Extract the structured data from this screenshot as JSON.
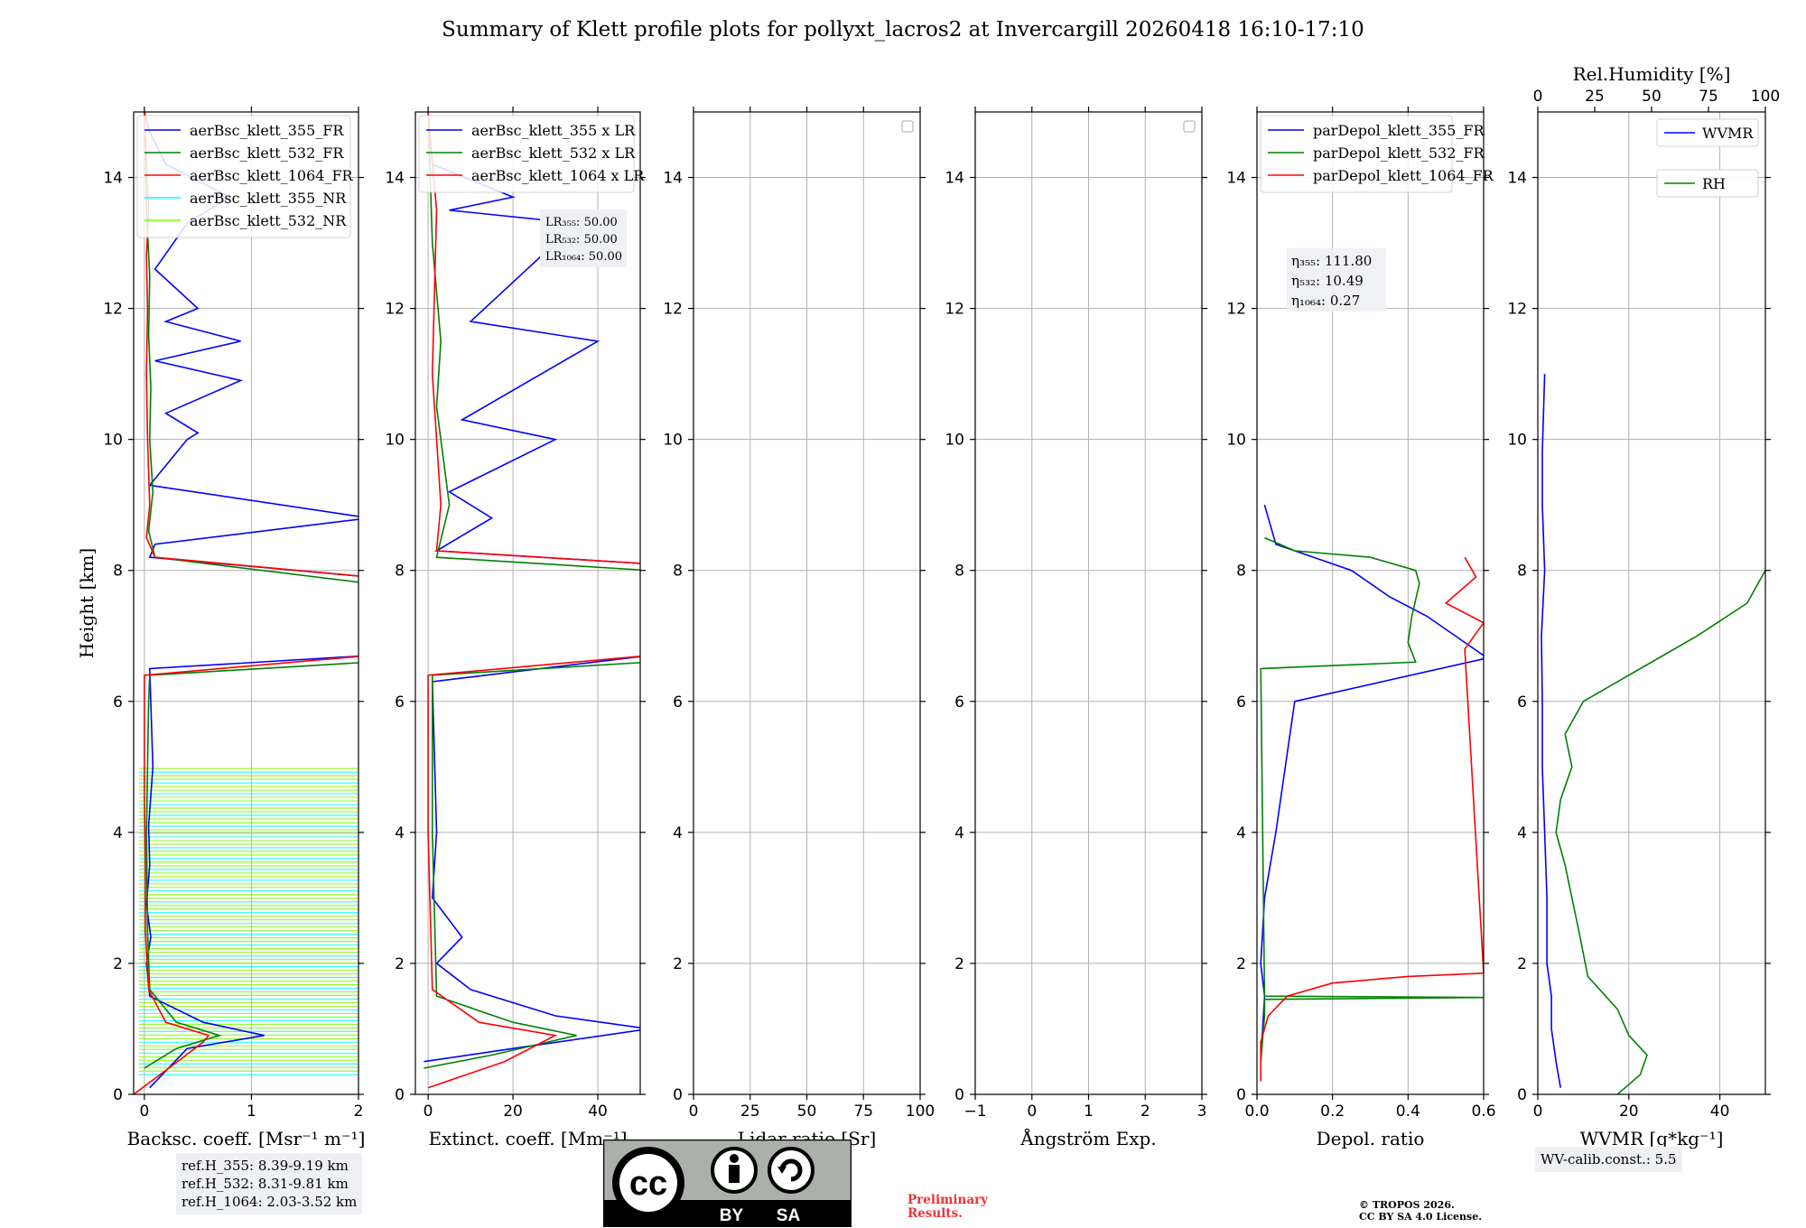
{
  "title": "Summary of Klett profile plots for pollyxt_lacros2 at Invercargill 20260418 16:10-17:10",
  "colors": {
    "c355": "#0000ff",
    "c532": "#008000",
    "c1064": "#ff0000",
    "cNR355": "#00ffff",
    "cNR532": "#7cfc00",
    "grid": "#b0b0b0"
  },
  "chart_data": [
    {
      "type": "line",
      "id": "backscatter",
      "xlabel": "Backsc. coeff. [Msr⁻¹ m⁻¹]",
      "ylabel": "Height [km]",
      "xlim": [
        -0.1,
        2
      ],
      "ylim": [
        0,
        15
      ],
      "xticks": [
        0,
        1,
        2
      ],
      "xtick_labels": [
        "0",
        "1",
        "2"
      ],
      "yticks": [
        0,
        2,
        4,
        6,
        8,
        10,
        12,
        14
      ],
      "ytick_labels": [
        "0",
        "2",
        "4",
        "6",
        "8",
        "10",
        "12",
        "14"
      ],
      "legend": [
        "aerBsc_klett_355_FR",
        "aerBsc_klett_532_FR",
        "aerBsc_klett_1064_FR",
        "aerBsc_klett_355_NR",
        "aerBsc_klett_532_NR"
      ],
      "series": [
        {
          "name": "aerBsc_klett_355_FR",
          "color": "c355",
          "x": [
            0.05,
            0.4,
            1.12,
            0.55,
            0.05,
            0.02,
            0.06,
            0.02,
            0.05,
            0.04,
            0.08,
            0.05,
            2.1,
            2.1,
            0.05,
            0.1,
            2.1,
            0.05,
            0.4,
            0.5,
            0.2,
            0.9,
            0.1,
            0.9,
            0.2,
            0.5,
            0.1,
            0.4,
            0.8,
            0.2,
            0.05,
            0.0
          ],
          "y": [
            0.1,
            0.7,
            0.9,
            1.1,
            1.5,
            2.0,
            2.4,
            2.9,
            3.5,
            4.1,
            5.0,
            6.5,
            6.7,
            7.9,
            8.2,
            8.4,
            8.8,
            9.3,
            10.0,
            10.1,
            10.4,
            10.9,
            11.2,
            11.5,
            11.8,
            12.0,
            12.6,
            13.3,
            13.7,
            14.2,
            14.7,
            15.0
          ]
        },
        {
          "name": "aerBsc_klett_532_FR",
          "color": "c532",
          "x": [
            0.0,
            0.1,
            0.3,
            0.7,
            0.3,
            0.05,
            0.03,
            0.02,
            0.03,
            0.04,
            0.05,
            2.1,
            2.1,
            0.1,
            0.04,
            0.08,
            0.05,
            0.06,
            0.04,
            0.05,
            0.02,
            0.0
          ],
          "y": [
            0.4,
            0.5,
            0.7,
            0.9,
            1.1,
            1.6,
            2.5,
            4.0,
            5.0,
            6.0,
            6.4,
            6.6,
            7.8,
            8.2,
            8.6,
            9.2,
            10.0,
            10.8,
            11.6,
            12.5,
            13.5,
            15.0
          ]
        },
        {
          "name": "aerBsc_klett_1064_FR",
          "color": "c1064",
          "x": [
            -0.1,
            0.35,
            0.55,
            0.6,
            0.2,
            0.04,
            0.01,
            0.01,
            0.0,
            0.0,
            0.0,
            2.1,
            2.1,
            0.1,
            0.02,
            0.05,
            0.03,
            0.02,
            0.03,
            0.02,
            0.04,
            0.02,
            0.0
          ],
          "y": [
            0.0,
            0.55,
            0.8,
            0.9,
            1.1,
            1.6,
            2.5,
            3.5,
            4.5,
            5.5,
            6.4,
            6.7,
            7.9,
            8.2,
            8.5,
            9.0,
            10.0,
            11.0,
            12.0,
            12.8,
            13.5,
            14.2,
            15.0
          ]
        }
      ],
      "nr_hatch_range_km": [
        0.3,
        5.0
      ],
      "annotation": [
        "ref.H_355: 8.39-9.19 km",
        "ref.H_532: 8.31-9.81 km",
        "ref.H_1064: 2.03-3.52 km"
      ]
    },
    {
      "type": "line",
      "id": "extinction",
      "xlabel": "Extinct. coeff. [Mm⁻¹]",
      "xlim": [
        -3,
        50
      ],
      "ylim": [
        0,
        15
      ],
      "xticks": [
        0,
        20,
        40
      ],
      "xtick_labels": [
        "0",
        "20",
        "40"
      ],
      "yticks": [
        0,
        2,
        4,
        6,
        8,
        10,
        12,
        14
      ],
      "ytick_labels": [
        "0",
        "2",
        "4",
        "6",
        "8",
        "10",
        "12",
        "14"
      ],
      "legend": [
        "aerBsc_klett_355 x LR",
        "aerBsc_klett_532 x LR",
        "aerBsc_klett_1064 x LR"
      ],
      "series": [
        {
          "name": "aerBsc_klett_355 x LR",
          "color": "c355",
          "x": [
            -1,
            20,
            52,
            30,
            10,
            2,
            8,
            1,
            2,
            1,
            52,
            52,
            2,
            15,
            5,
            30,
            8,
            40,
            10,
            35,
            5,
            20,
            1,
            0
          ],
          "y": [
            0.5,
            0.7,
            1.0,
            1.2,
            1.6,
            2.0,
            2.4,
            3.0,
            4.0,
            6.3,
            6.7,
            8.1,
            8.3,
            8.8,
            9.2,
            10.0,
            10.3,
            11.5,
            11.8,
            13.3,
            13.5,
            13.7,
            14.2,
            15.0
          ]
        },
        {
          "name": "aerBsc_klett_532 x LR",
          "color": "c532",
          "x": [
            -1,
            15,
            35,
            20,
            2,
            1,
            1,
            52,
            52,
            2,
            5,
            2,
            3,
            1,
            0
          ],
          "y": [
            0.4,
            0.6,
            0.9,
            1.1,
            1.5,
            4.0,
            6.4,
            6.6,
            8.0,
            8.2,
            9.0,
            10.5,
            11.5,
            13.0,
            15.0
          ]
        },
        {
          "name": "aerBsc_klett_1064 x LR",
          "color": "c1064",
          "x": [
            0,
            18,
            30,
            12,
            1,
            0,
            0,
            52,
            52,
            2,
            3,
            1,
            2,
            0
          ],
          "y": [
            0.1,
            0.5,
            0.9,
            1.1,
            1.6,
            4.0,
            6.4,
            6.7,
            8.1,
            8.3,
            9.0,
            11.0,
            13.5,
            15.0
          ]
        }
      ],
      "annotation": [
        "LR₃₅₅: 50.00",
        "LR₅₃₂: 50.00",
        "LR₁₀₆₄: 50.00"
      ]
    },
    {
      "type": "line",
      "id": "lidar-ratio",
      "xlabel": "Lidar ratio [Sr]",
      "xlim": [
        0,
        100
      ],
      "ylim": [
        0,
        15
      ],
      "xticks": [
        0,
        25,
        50,
        75,
        100
      ],
      "xtick_labels": [
        "0",
        "25",
        "50",
        "75",
        "100"
      ],
      "yticks": [
        0,
        2,
        4,
        6,
        8,
        10,
        12,
        14
      ],
      "ytick_labels": [
        "0",
        "2",
        "4",
        "6",
        "8",
        "10",
        "12",
        "14"
      ],
      "series": [],
      "empty_legend": true
    },
    {
      "type": "line",
      "id": "angstrom",
      "xlabel": "Ångström Exp.",
      "xlim": [
        -1,
        3
      ],
      "ylim": [
        0,
        15
      ],
      "xticks": [
        -1,
        0,
        1,
        2,
        3
      ],
      "xtick_labels": [
        "−1",
        "0",
        "1",
        "2",
        "3"
      ],
      "yticks": [
        0,
        2,
        4,
        6,
        8,
        10,
        12,
        14
      ],
      "ytick_labels": [
        "0",
        "2",
        "4",
        "6",
        "8",
        "10",
        "12",
        "14"
      ],
      "series": [],
      "empty_legend": true
    },
    {
      "type": "line",
      "id": "depol",
      "xlabel": "Depol. ratio",
      "xlim": [
        0,
        0.6
      ],
      "ylim": [
        0,
        15
      ],
      "xticks": [
        0,
        0.2,
        0.4,
        0.6
      ],
      "xtick_labels": [
        "0.0",
        "0.2",
        "0.4",
        "0.6"
      ],
      "yticks": [
        0,
        2,
        4,
        6,
        8,
        10,
        12,
        14
      ],
      "ytick_labels": [
        "0",
        "2",
        "4",
        "6",
        "8",
        "10",
        "12",
        "14"
      ],
      "legend": [
        "parDepol_klett_355_FR",
        "parDepol_klett_532_FR",
        "parDepol_klett_1064_FR"
      ],
      "series": [
        {
          "name": "parDepol_klett_355_FR",
          "color": "c355",
          "x": [
            0.01,
            0.02,
            0.01,
            0.02,
            0.05,
            0.1,
            0.6,
            0.6,
            0.55,
            0.45,
            0.35,
            0.3,
            0.25,
            0.15,
            0.05,
            0.02
          ],
          "y": [
            0.5,
            1.5,
            2.0,
            3.0,
            4.0,
            6.0,
            6.65,
            6.7,
            6.9,
            7.3,
            7.6,
            7.8,
            8.0,
            8.2,
            8.4,
            9.0
          ]
        },
        {
          "name": "parDepol_klett_532_FR",
          "color": "c532",
          "x": [
            0.01,
            0.02,
            0.02,
            0.6,
            0.02,
            0.01,
            0.42,
            0.4,
            0.41,
            0.43,
            0.42,
            0.3,
            0.1,
            0.02
          ],
          "y": [
            0.5,
            1.2,
            1.45,
            1.48,
            1.5,
            6.5,
            6.6,
            6.9,
            7.3,
            7.8,
            8.0,
            8.2,
            8.3,
            8.5
          ]
        },
        {
          "name": "parDepol_klett_1064_FR",
          "color": "c1064",
          "x": [
            0.01,
            0.01,
            0.03,
            0.08,
            0.2,
            0.4,
            0.6,
            0.55,
            0.6,
            0.5,
            0.58,
            0.55
          ],
          "y": [
            0.2,
            0.8,
            1.2,
            1.5,
            1.7,
            1.8,
            1.85,
            6.8,
            7.2,
            7.5,
            7.9,
            8.2
          ]
        }
      ],
      "annotation": [
        "η₃₅₅: 111.80",
        "η₅₃₂: 10.49",
        "η₁₀₆₄: 0.27"
      ]
    },
    {
      "type": "line",
      "id": "wvmr",
      "xlabel": "WVMR [g*kg⁻¹]",
      "x2label": "Rel.Humidity [%]",
      "xlim": [
        0,
        50
      ],
      "x2lim": [
        0,
        100
      ],
      "ylim": [
        0,
        15
      ],
      "xticks": [
        0,
        20,
        40
      ],
      "xtick_labels": [
        "0",
        "20",
        "40"
      ],
      "x2ticks": [
        0,
        25,
        50,
        75,
        100
      ],
      "x2tick_labels": [
        "0",
        "25",
        "50",
        "75",
        "100"
      ],
      "yticks": [
        0,
        2,
        4,
        6,
        8,
        10,
        12,
        14
      ],
      "ytick_labels": [
        "0",
        "2",
        "4",
        "6",
        "8",
        "10",
        "12",
        "14"
      ],
      "legend": [
        "WVMR",
        "RH"
      ],
      "series": [
        {
          "name": "WVMR",
          "color": "c355",
          "x": [
            5,
            4,
            3,
            3,
            2,
            2,
            1.5,
            1,
            1,
            0.8,
            1.5,
            1,
            1,
            1.5
          ],
          "y": [
            0.1,
            0.5,
            1.0,
            1.5,
            2.0,
            3.0,
            4.0,
            5.0,
            6.0,
            7.0,
            8.0,
            9.0,
            9.8,
            11.0
          ]
        },
        {
          "name": "RH",
          "color": "c532",
          "x": [
            35,
            45,
            48,
            40,
            35,
            22,
            18,
            15,
            12,
            8,
            10,
            15,
            12,
            20,
            45,
            70,
            92,
            100
          ],
          "y": [
            0.0,
            0.3,
            0.6,
            0.9,
            1.3,
            1.8,
            2.5,
            3.0,
            3.5,
            4.0,
            4.5,
            5.0,
            5.5,
            6.0,
            6.5,
            7.0,
            7.5,
            8.0
          ]
        }
      ],
      "annotation": [
        "WV-calib.const.: 5.5"
      ]
    }
  ],
  "license": {
    "cc": "cc",
    "by": "BY",
    "sa": "SA"
  },
  "footer": {
    "prelim1": "Preliminary",
    "prelim2": "Results.",
    "copyright1": "© TROPOS 2026.",
    "copyright2": "CC BY SA 4.0 License."
  }
}
